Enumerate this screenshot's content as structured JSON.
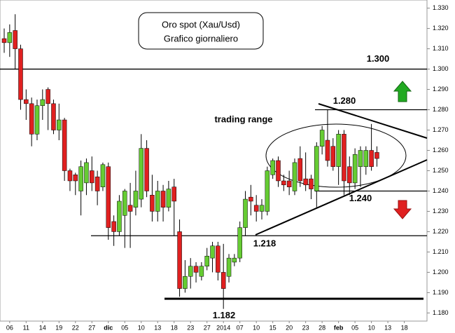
{
  "chart_data": {
    "type": "candlestick",
    "title": "Oro spot (Xau/Usd)",
    "subtitle": "Grafico giornaliero",
    "annotation": "trading range",
    "categories": [
      null,
      "06",
      null,
      null,
      "11",
      null,
      null,
      "14",
      null,
      null,
      "19",
      null,
      null,
      "22",
      null,
      null,
      "27",
      null,
      null,
      "dic",
      null,
      null,
      "05",
      null,
      null,
      "10",
      null,
      null,
      "13",
      null,
      null,
      "18",
      null,
      null,
      "23",
      null,
      null,
      "27",
      null,
      null,
      "2014",
      null,
      null,
      "07",
      null,
      null,
      "10",
      null,
      null,
      "15",
      null,
      null,
      "20",
      null,
      null,
      "23",
      null,
      null,
      "28",
      null,
      null,
      "feb",
      null,
      null,
      "05",
      null,
      null,
      "10",
      null,
      null,
      "13",
      null,
      null,
      "18"
    ],
    "open": [
      1.315,
      1.313,
      1.319,
      1.31,
      1.285,
      1.283,
      1.268,
      1.282,
      1.29,
      1.283,
      1.27,
      1.275,
      1.25,
      1.248,
      1.24,
      1.244,
      1.25,
      1.247,
      1.242,
      1.252,
      1.225,
      1.22,
      1.228,
      1.233,
      1.232,
      1.236,
      1.261,
      1.238,
      1.23,
      1.24,
      1.232,
      1.242,
      1.22,
      1.192,
      1.198,
      1.203,
      1.198,
      1.203,
      1.207,
      1.213,
      1.2,
      1.198,
      1.205,
      1.207,
      1.222,
      1.237,
      1.233,
      1.23,
      1.23,
      1.248,
      1.255,
      1.245,
      1.245,
      1.24,
      1.256,
      1.246,
      1.246,
      1.24,
      1.262,
      1.265,
      1.262,
      1.252,
      1.268,
      1.252,
      1.244,
      1.252,
      1.252,
      1.26,
      1.259,
      null,
      null,
      null,
      null,
      null
    ],
    "high": [
      1.32,
      1.322,
      1.327,
      1.312,
      1.29,
      1.286,
      1.285,
      1.29,
      1.291,
      1.285,
      1.283,
      1.276,
      1.251,
      1.249,
      1.255,
      1.256,
      1.257,
      1.25,
      1.254,
      1.254,
      1.228,
      1.238,
      1.241,
      1.244,
      1.25,
      1.268,
      1.265,
      1.248,
      1.245,
      1.243,
      1.245,
      1.246,
      1.226,
      1.206,
      1.207,
      1.205,
      1.205,
      1.212,
      1.215,
      1.215,
      1.214,
      1.209,
      1.209,
      1.225,
      1.24,
      1.243,
      1.238,
      1.236,
      1.252,
      1.256,
      1.257,
      1.248,
      1.25,
      1.256,
      1.262,
      1.259,
      1.248,
      1.264,
      1.272,
      1.28,
      1.266,
      1.27,
      1.27,
      1.257,
      1.261,
      1.262,
      1.262,
      1.273,
      1.262,
      null,
      null,
      null,
      null,
      null
    ],
    "low": [
      1.308,
      1.306,
      1.3,
      1.28,
      1.275,
      1.262,
      1.265,
      1.275,
      1.27,
      1.268,
      1.265,
      1.245,
      1.24,
      1.238,
      1.228,
      1.238,
      1.24,
      1.233,
      1.24,
      1.216,
      1.213,
      1.218,
      1.212,
      1.212,
      1.228,
      1.232,
      1.237,
      1.225,
      1.225,
      1.225,
      1.23,
      1.218,
      1.188,
      1.19,
      1.192,
      1.195,
      1.196,
      1.201,
      1.2,
      1.196,
      1.182,
      1.195,
      1.203,
      1.205,
      1.218,
      1.228,
      1.225,
      1.226,
      1.228,
      1.246,
      1.242,
      1.24,
      1.238,
      1.238,
      1.242,
      1.24,
      1.236,
      1.232,
      1.258,
      1.252,
      1.25,
      1.243,
      1.238,
      1.238,
      1.241,
      1.242,
      1.248,
      1.25,
      1.252,
      null,
      null,
      null,
      null,
      null
    ],
    "close": [
      1.313,
      1.318,
      1.31,
      1.285,
      1.283,
      1.268,
      1.282,
      1.285,
      1.283,
      1.27,
      1.275,
      1.25,
      1.245,
      1.245,
      1.252,
      1.254,
      1.244,
      1.24,
      1.253,
      1.222,
      1.22,
      1.235,
      1.24,
      1.23,
      1.24,
      1.261,
      1.24,
      1.23,
      1.24,
      1.232,
      1.241,
      1.235,
      1.192,
      1.198,
      1.203,
      1.2,
      1.203,
      1.208,
      1.213,
      1.2,
      1.192,
      1.207,
      1.207,
      1.222,
      1.236,
      1.235,
      1.23,
      1.233,
      1.25,
      1.255,
      1.245,
      1.243,
      1.242,
      1.254,
      1.245,
      1.243,
      1.241,
      1.262,
      1.27,
      1.255,
      1.252,
      1.268,
      1.245,
      1.244,
      1.258,
      1.26,
      1.26,
      1.252,
      1.256,
      null,
      null,
      null,
      null,
      null
    ],
    "up_color": "#66cc33",
    "down_color": "#e02020",
    "levels": [
      {
        "value": 1.3,
        "label": "1.300"
      },
      {
        "value": 1.28,
        "label": "1.280"
      },
      {
        "value": 1.24,
        "label": "1.240"
      },
      {
        "value": 1.218,
        "label": "1.218"
      },
      {
        "value": 1.182,
        "label": "1.182"
      }
    ],
    "support_line": 1.187,
    "ylim": [
      1.176,
      1.334
    ],
    "yticks": [
      {
        "value": 1.18,
        "label": "1.180"
      },
      {
        "value": 1.19,
        "label": "1.190"
      },
      {
        "value": 1.2,
        "label": "1.200"
      },
      {
        "value": 1.21,
        "label": "1.210"
      },
      {
        "value": 1.22,
        "label": "1.220"
      },
      {
        "value": 1.23,
        "label": "1.230"
      },
      {
        "value": 1.24,
        "label": "1.240"
      },
      {
        "value": 1.25,
        "label": "1.250"
      },
      {
        "value": 1.26,
        "label": "1.260"
      },
      {
        "value": 1.27,
        "label": "1.270"
      },
      {
        "value": 1.28,
        "label": "1.280"
      },
      {
        "value": 1.29,
        "label": "1.290"
      },
      {
        "value": 1.3,
        "label": "1.300"
      },
      {
        "value": 1.31,
        "label": "1.310"
      },
      {
        "value": 1.32,
        "label": "1.320"
      },
      {
        "value": 1.33,
        "label": "1.330"
      }
    ]
  }
}
